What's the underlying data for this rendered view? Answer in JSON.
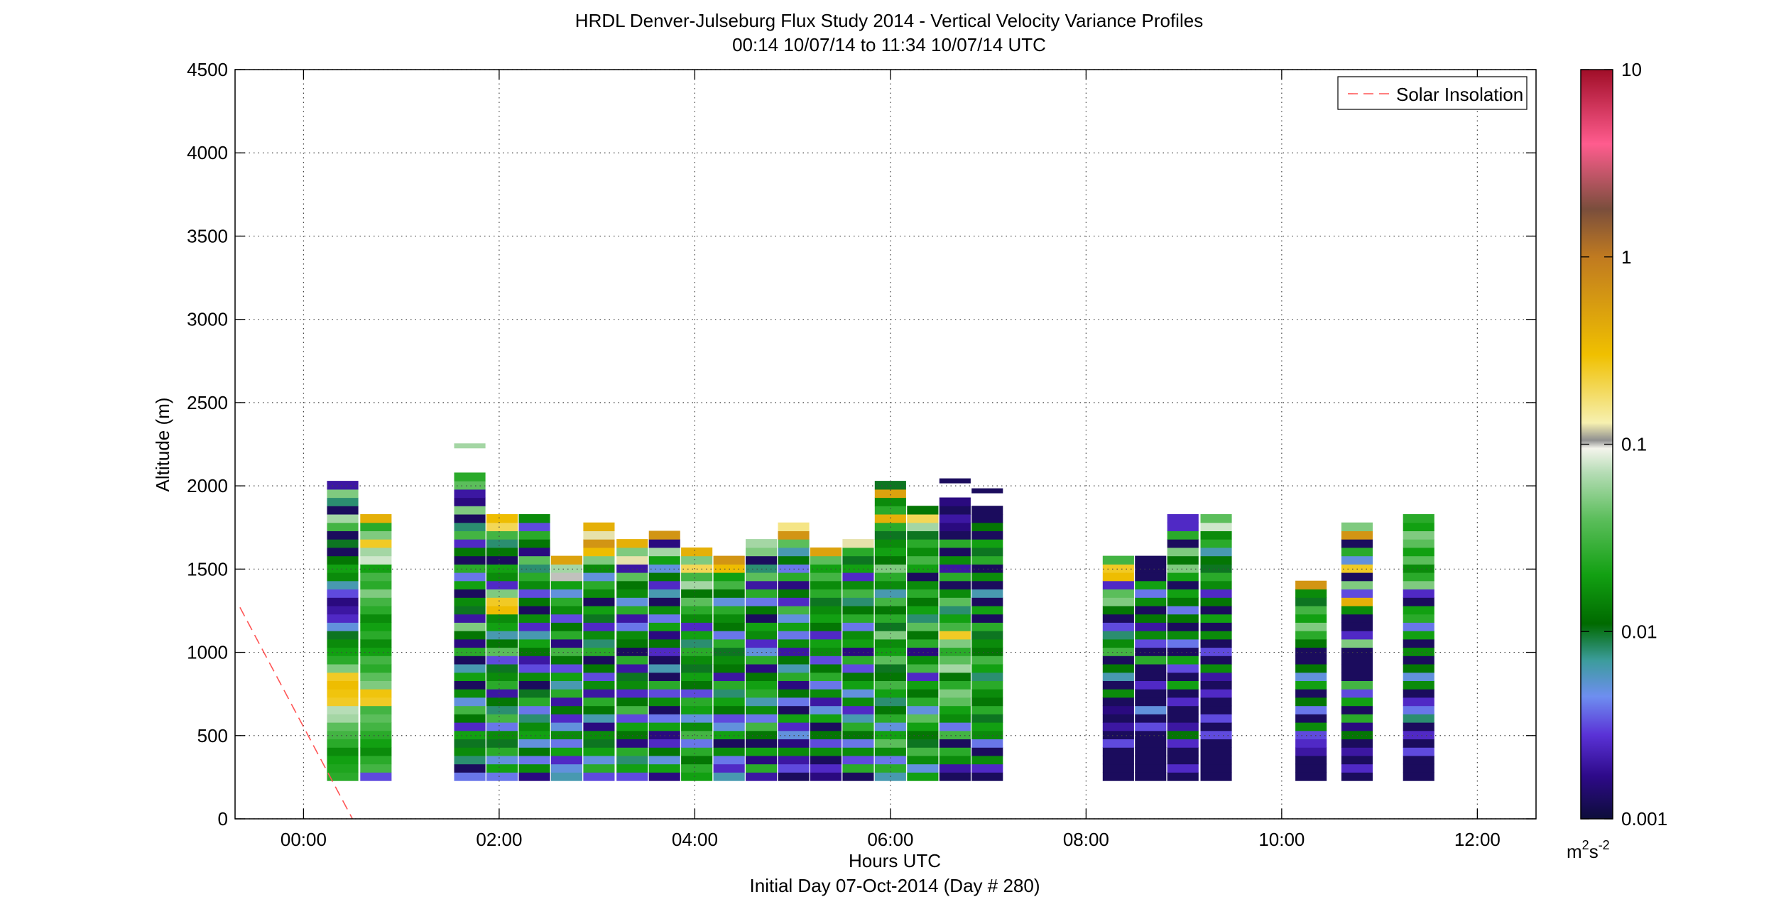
{
  "chart_data": {
    "type": "heatmap",
    "title": "HRDL Denver-Julseburg Flux Study 2014 - Vertical Velocity Variance Profiles",
    "subtitle": "00:14 10/07/14 to 11:34 10/07/14  UTC",
    "xlabel": "Hours UTC",
    "xlabel2": "Initial Day 07-Oct-2014 (Day # 280)",
    "ylabel": "Altitude (m)",
    "xlim_hours": [
      -0.7,
      12.6
    ],
    "ylim": [
      0,
      4500
    ],
    "x_ticks": [
      {
        "hour": 0,
        "label": "00:00"
      },
      {
        "hour": 2,
        "label": "02:00"
      },
      {
        "hour": 4,
        "label": "04:00"
      },
      {
        "hour": 6,
        "label": "06:00"
      },
      {
        "hour": 8,
        "label": "08:00"
      },
      {
        "hour": 10,
        "label": "10:00"
      },
      {
        "hour": 12,
        "label": "12:00"
      }
    ],
    "y_ticks": [
      0,
      500,
      1000,
      1500,
      2000,
      2500,
      3000,
      3500,
      4000,
      4500
    ],
    "grid": true,
    "legend": {
      "position": "top-right",
      "entries": [
        {
          "label": "Solar Insolation",
          "style": "dashed",
          "color": "#ff5555"
        }
      ]
    },
    "solar_insolation": {
      "x": [
        -0.65,
        0.5
      ],
      "y": [
        1270,
        0
      ]
    },
    "colorbar": {
      "scale": "log",
      "range": [
        0.001,
        10
      ],
      "ticks": [
        {
          "value": 10,
          "label": "10"
        },
        {
          "value": 1,
          "label": "1"
        },
        {
          "value": 0.1,
          "label": "0.1"
        },
        {
          "value": 0.01,
          "label": "0.01"
        },
        {
          "value": 0.001,
          "label": "0.001"
        }
      ],
      "units_base": "m",
      "units_exp1": "2",
      "units_mid": "s",
      "units_exp2": "-2",
      "stops": [
        {
          "value": 0.001,
          "color": "#0d0d3a"
        },
        {
          "value": 0.0017,
          "color": "#2e0a8a"
        },
        {
          "value": 0.0028,
          "color": "#5a32d6"
        },
        {
          "value": 0.0045,
          "color": "#6e8ef0"
        },
        {
          "value": 0.007,
          "color": "#3c9c9c"
        },
        {
          "value": 0.011,
          "color": "#006a00"
        },
        {
          "value": 0.02,
          "color": "#12a012"
        },
        {
          "value": 0.04,
          "color": "#5cbe5c"
        },
        {
          "value": 0.07,
          "color": "#b4dcb4"
        },
        {
          "value": 0.095,
          "color": "#f4f4ec"
        },
        {
          "value": 0.105,
          "color": "#909090"
        },
        {
          "value": 0.13,
          "color": "#f6f0b0"
        },
        {
          "value": 0.3,
          "color": "#f0c000"
        },
        {
          "value": 1.0,
          "color": "#c07a20"
        },
        {
          "value": 1.8,
          "color": "#7a4e3c"
        },
        {
          "value": 4.0,
          "color": "#ff5c8e"
        },
        {
          "value": 10,
          "color": "#a00e28"
        }
      ]
    },
    "range_gates_m": {
      "start": 230,
      "step": 50
    },
    "profiles": [
      {
        "t": 0.4,
        "vals": [
          -1.6,
          -1.65,
          -1.7,
          -1.8,
          -1.6,
          -1.5,
          -1.4,
          -1.2,
          -1.15,
          -0.6,
          -0.55,
          -0.5,
          -0.6,
          -1.3,
          -1.6,
          -1.7,
          -1.8,
          -2.0,
          -2.3,
          -2.6,
          -2.7,
          -2.8,
          -2.5,
          -2.2,
          -1.8,
          -1.7,
          -1.9,
          -2.9,
          -2.0,
          -2.9,
          -1.5,
          -1.2,
          -2.9,
          -2.1,
          -1.3,
          -2.7
        ]
      },
      {
        "t": 0.74,
        "vals": [
          -2.5,
          -1.5,
          -1.6,
          -1.8,
          -1.7,
          -1.6,
          -1.5,
          -1.4,
          -1.5,
          -0.6,
          -0.55,
          -1.3,
          -1.4,
          -1.6,
          -1.5,
          -1.7,
          -1.8,
          -1.6,
          -1.7,
          -1.8,
          -1.6,
          -1.5,
          -1.3,
          -1.6,
          -1.5,
          -1.7,
          -1.1,
          -1.2,
          -0.6,
          -1.3,
          -1.6,
          -0.4
        ]
      },
      {
        "t": 1.7,
        "vals": [
          -2.4,
          -2.9,
          -2.1,
          -1.8,
          -2.0,
          -1.7,
          -2.6,
          -1.9,
          -1.5,
          -2.3,
          -1.8,
          -2.9,
          -1.7,
          -2.2,
          -2.9,
          -1.6,
          -2.8,
          -1.9,
          -1.3,
          -2.7,
          -2.0,
          -1.8,
          -2.9,
          -1.7,
          -2.4,
          -1.6,
          -2.9,
          -1.9,
          -2.6,
          -1.5,
          -2.1,
          -2.9,
          -1.3,
          -2.8,
          -2.7,
          -1.4,
          -1.6
        ]
      },
      {
        "t": 2.03,
        "vals": [
          -2.4,
          -1.7,
          -2.3,
          -1.6,
          -2.0,
          -1.8,
          -2.4,
          -1.5,
          -2.1,
          -1.9,
          -2.7,
          -1.6,
          -1.8,
          -2.0,
          -2.5,
          -1.4,
          -1.9,
          -2.2,
          -1.7,
          -1.8,
          -0.5,
          -0.6,
          -1.3,
          -2.6,
          -1.8,
          -1.7,
          -2.9,
          -1.9,
          -2.1,
          -1.5,
          -0.7,
          -0.5
        ]
      },
      {
        "t": 2.36,
        "vals": [
          -2.8,
          -1.8,
          -2.4,
          -1.9,
          -2.3,
          -1.7,
          -1.8,
          -2.1,
          -2.4,
          -1.6,
          -2.0,
          -2.9,
          -1.8,
          -2.5,
          -2.7,
          -1.9,
          -1.7,
          -2.2,
          -2.6,
          -1.8,
          -2.9,
          -1.9,
          -2.5,
          -1.8,
          -1.6,
          -2.1,
          -1.4,
          -2.8,
          -1.9,
          -1.6,
          -2.5,
          -1.8
        ]
      },
      {
        "t": 2.69,
        "vals": [
          -2.2,
          -2.3,
          -2.6,
          -1.7,
          -2.4,
          -1.8,
          -2.3,
          -2.6,
          -1.9,
          -2.7,
          -1.6,
          -2.2,
          -1.7,
          -2.5,
          -1.9,
          -1.5,
          -2.8,
          -1.6,
          -1.9,
          -2.5,
          -1.8,
          -1.6,
          -2.3,
          -1.7,
          -1.0,
          -1.2,
          -0.3
        ]
      },
      {
        "t": 3.02,
        "vals": [
          -2.5,
          -1.6,
          -2.3,
          -1.7,
          -2.0,
          -1.8,
          -2.8,
          -2.2,
          -1.9,
          -1.6,
          -2.7,
          -1.8,
          -2.5,
          -1.9,
          -2.9,
          -1.6,
          -2.1,
          -1.8,
          -2.6,
          -2.0,
          -1.7,
          -2.9,
          -1.8,
          -1.6,
          -2.3,
          -1.8,
          -1.3,
          -0.5,
          -0.2,
          -0.9,
          -0.4
        ]
      },
      {
        "t": 3.36,
        "vals": [
          -2.5,
          -1.7,
          -2.1,
          -1.6,
          -2.8,
          -1.9,
          -1.7,
          -2.5,
          -1.5,
          -1.9,
          -2.6,
          -1.8,
          -2.0,
          -2.7,
          -1.6,
          -2.9,
          -1.9,
          -1.8,
          -2.4,
          -2.7,
          -1.6,
          -2.3,
          -1.8,
          -1.9,
          -1.4,
          -2.7,
          -0.9,
          -1.3,
          -0.4
        ]
      },
      {
        "t": 3.69,
        "vals": [
          -2.8,
          -1.7,
          -2.3,
          -1.9,
          -2.6,
          -2.8,
          -1.7,
          -2.4,
          -2.9,
          -1.8,
          -2.5,
          -1.6,
          -2.9,
          -2.2,
          -2.9,
          -2.6,
          -1.9,
          -2.8,
          -1.7,
          -2.4,
          -1.8,
          -2.9,
          -2.2,
          -2.6,
          -1.9,
          -2.3,
          -1.7,
          -1.2,
          -2.8,
          -0.2
        ]
      },
      {
        "t": 4.02,
        "vals": [
          -1.7,
          -1.6,
          -1.9,
          -1.6,
          -2.4,
          -1.5,
          -1.8,
          -2.3,
          -1.7,
          -1.6,
          -2.5,
          -1.9,
          -1.7,
          -2.0,
          -1.8,
          -1.6,
          -2.1,
          -1.7,
          -2.6,
          -1.8,
          -1.6,
          -1.4,
          -1.9,
          -1.2,
          -1.5,
          -0.7,
          -1.3,
          -0.4
        ]
      },
      {
        "t": 4.35,
        "vals": [
          -2.2,
          -2.6,
          -2.4,
          -1.8,
          -2.9,
          -1.7,
          -2.3,
          -2.5,
          -1.9,
          -1.7,
          -2.1,
          -1.6,
          -2.7,
          -1.9,
          -1.8,
          -2.0,
          -1.6,
          -2.4,
          -1.9,
          -1.8,
          -1.6,
          -2.3,
          -1.9,
          -1.5,
          -1.7,
          -0.5,
          -0.2
        ]
      },
      {
        "t": 4.68,
        "vals": [
          -2.7,
          -1.6,
          -2.8,
          -1.7,
          -2.9,
          -1.9,
          -1.5,
          -2.4,
          -1.8,
          -2.2,
          -1.6,
          -1.7,
          -1.9,
          -2.8,
          -1.6,
          -2.3,
          -2.6,
          -1.8,
          -1.7,
          -2.9,
          -1.9,
          -2.4,
          -1.6,
          -2.7,
          -1.4,
          -2.1,
          -2.9,
          -1.3,
          -1.2
        ]
      },
      {
        "t": 5.01,
        "vals": [
          -2.9,
          -2.5,
          -2.7,
          -1.8,
          -2.8,
          -2.3,
          -2.6,
          -1.7,
          -2.9,
          -2.4,
          -1.9,
          -2.8,
          -1.6,
          -2.2,
          -1.9,
          -2.7,
          -1.8,
          -2.4,
          -1.7,
          -2.3,
          -1.5,
          -2.6,
          -1.9,
          -2.8,
          -1.6,
          -2.4,
          -1.9,
          -2.2,
          -1.4,
          -0.2,
          -0.8
        ]
      },
      {
        "t": 5.34,
        "vals": [
          -2.8,
          -2.6,
          -2.9,
          -1.8,
          -2.5,
          -1.9,
          -2.9,
          -1.7,
          -2.3,
          -2.7,
          -1.8,
          -2.4,
          -1.6,
          -1.9,
          -2.5,
          -1.8,
          -1.7,
          -2.6,
          -1.9,
          -1.7,
          -1.8,
          -2.0,
          -1.6,
          -1.8,
          -1.5,
          -1.7,
          -1.4,
          -0.3
        ]
      },
      {
        "t": 5.67,
        "vals": [
          -2.9,
          -1.6,
          -2.5,
          -1.8,
          -2.4,
          -1.9,
          -1.6,
          -2.2,
          -2.6,
          -1.8,
          -2.3,
          -1.7,
          -1.9,
          -2.5,
          -1.6,
          -2.8,
          -1.7,
          -1.8,
          -2.4,
          -1.6,
          -1.9,
          -2.1,
          -1.5,
          -1.8,
          -2.6,
          -1.7,
          -2.0,
          -1.6,
          -0.9
        ]
      },
      {
        "t": 6.0,
        "vals": [
          -2.2,
          -1.6,
          -2.4,
          -1.8,
          -1.4,
          -1.7,
          -2.3,
          -1.6,
          -1.9,
          -2.1,
          -1.7,
          -1.5,
          -1.9,
          -2.0,
          -1.4,
          -1.7,
          -1.8,
          -1.3,
          -2.0,
          -1.6,
          -1.9,
          -1.5,
          -2.2,
          -1.8,
          -1.6,
          -1.3,
          -1.9,
          -1.7,
          -1.8,
          -2.0,
          -1.6,
          -0.4,
          -1.6,
          -1.8,
          -0.3,
          -2.0
        ]
      },
      {
        "t": 6.33,
        "vals": [
          -1.7,
          -2.3,
          -1.8,
          -1.5,
          -2.0,
          -1.9,
          -1.7,
          -1.4,
          -2.3,
          -1.6,
          -1.9,
          -1.7,
          -2.6,
          -1.5,
          -1.8,
          -2.8,
          -1.6,
          -1.9,
          -1.4,
          -2.1,
          -1.7,
          -1.9,
          -1.6,
          -1.8,
          -2.9,
          -1.7,
          -1.5,
          -1.8,
          -1.6,
          -2.0,
          -1.2,
          -0.7,
          -1.9
        ]
      },
      {
        "t": 6.66,
        "vals": [
          -2.9,
          -2.7,
          -1.8,
          -1.6,
          -2.9,
          -1.5,
          -2.4,
          -1.8,
          -1.7,
          -1.4,
          -1.3,
          -1.6,
          -1.9,
          -1.2,
          -1.4,
          -1.6,
          -1.3,
          -0.6,
          -1.5,
          -1.7,
          -2.1,
          -1.4,
          -1.8,
          -2.9,
          -1.6,
          -2.7,
          -1.8,
          -2.9,
          -1.6,
          -2.9,
          -2.8,
          -2.7,
          -2.9,
          -2.8
        ]
      },
      {
        "t": 6.99,
        "vals": [
          -2.9,
          -2.6,
          -1.8,
          -2.9,
          -2.4,
          -1.8,
          -1.7,
          -2.0,
          -1.6,
          -1.9,
          -1.8,
          -1.6,
          -2.1,
          -1.7,
          -1.5,
          -1.9,
          -1.8,
          -2.0,
          -1.6,
          -2.9,
          -1.7,
          -2.9,
          -2.2,
          -2.9,
          -1.8,
          -2.9,
          -1.6,
          -2.0,
          -1.7,
          -2.9,
          -1.9,
          -2.9,
          -2.9
        ]
      },
      {
        "t": 8.33,
        "vals": [
          -2.9,
          -2.9,
          -2.9,
          -2.9,
          -2.5,
          -2.9,
          -2.7,
          -2.9,
          -2.8,
          -2.9,
          -1.8,
          -2.9,
          -2.2,
          -1.9,
          -2.9,
          -1.5,
          -1.8,
          -2.1,
          -2.5,
          -2.9,
          -1.9,
          -1.3,
          -1.4,
          -2.6,
          -0.5,
          -0.6,
          -1.5
        ]
      },
      {
        "t": 8.66,
        "vals": [
          -2.9,
          -2.9,
          -2.9,
          -2.9,
          -2.9,
          -2.9,
          -2.5,
          -2.9,
          -2.3,
          -2.9,
          -2.9,
          -2.6,
          -2.9,
          -2.9,
          -1.6,
          -2.9,
          -2.5,
          -1.8,
          -2.7,
          -1.9,
          -2.9,
          -1.8,
          -2.4,
          -1.7,
          -2.9,
          -2.9,
          -2.9
        ]
      },
      {
        "t": 8.99,
        "vals": [
          -2.9,
          -2.6,
          -2.9,
          -2.9,
          -2.6,
          -1.9,
          -2.7,
          -2.9,
          -2.9,
          -2.6,
          -2.9,
          -1.7,
          -2.9,
          -2.5,
          -1.7,
          -2.9,
          -2.4,
          -1.8,
          -2.9,
          -1.9,
          -2.4,
          -1.9,
          -1.7,
          -2.9,
          -1.7,
          -1.3,
          -1.9,
          -1.3,
          -2.9,
          -1.6,
          -2.6,
          -2.6
        ]
      },
      {
        "t": 9.33,
        "vals": [
          -2.9,
          -2.9,
          -2.9,
          -2.9,
          -2.9,
          -2.5,
          -2.9,
          -2.5,
          -2.9,
          -2.9,
          -2.6,
          -2.9,
          -2.7,
          -1.8,
          -2.9,
          -2.5,
          -2.9,
          -1.8,
          -2.9,
          -1.7,
          -2.9,
          -1.9,
          -2.6,
          -1.8,
          -1.6,
          -2.0,
          -1.9,
          -2.2,
          -1.6,
          -1.8,
          -1.1,
          -1.4
        ]
      },
      {
        "t": 10.3,
        "vals": [
          -2.9,
          -2.9,
          -2.9,
          -2.7,
          -2.6,
          -2.5,
          -1.8,
          -2.9,
          -2.4,
          -1.9,
          -2.9,
          -1.7,
          -2.3,
          -1.9,
          -2.9,
          -2.9,
          -1.9,
          -1.6,
          -1.3,
          -1.7,
          -1.5,
          -2.0,
          -1.8,
          -0.2
        ]
      },
      {
        "t": 10.77,
        "vals": [
          -2.9,
          -2.6,
          -2.9,
          -2.7,
          -2.9,
          -1.9,
          -2.8,
          -1.6,
          -2.9,
          -1.7,
          -2.5,
          -1.5,
          -2.9,
          -2.9,
          -2.9,
          -2.9,
          -1.3,
          -2.6,
          -2.9,
          -2.9,
          -1.8,
          -0.4,
          -2.5,
          -1.3,
          -2.9,
          -0.6,
          -2.3,
          -1.6,
          -2.9,
          -0.2,
          -1.3
        ]
      },
      {
        "t": 11.4,
        "vals": [
          -2.9,
          -2.9,
          -2.9,
          -2.5,
          -2.9,
          -2.6,
          -2.9,
          -2.1,
          -2.4,
          -2.6,
          -2.9,
          -1.8,
          -2.3,
          -1.9,
          -2.9,
          -1.8,
          -2.9,
          -1.7,
          -2.4,
          -1.6,
          -1.7,
          -2.9,
          -2.6,
          -1.3,
          -1.6,
          -1.8,
          -1.4,
          -1.7,
          -1.4,
          -1.3,
          -1.7,
          -1.6
        ]
      }
    ],
    "extra_cells": [
      {
        "t": 1.7,
        "alt": 2230,
        "val": -1.2
      },
      {
        "t": 6.66,
        "alt": 2020,
        "val": -2.9
      },
      {
        "t": 6.99,
        "alt": 1960,
        "val": -2.9
      }
    ]
  }
}
